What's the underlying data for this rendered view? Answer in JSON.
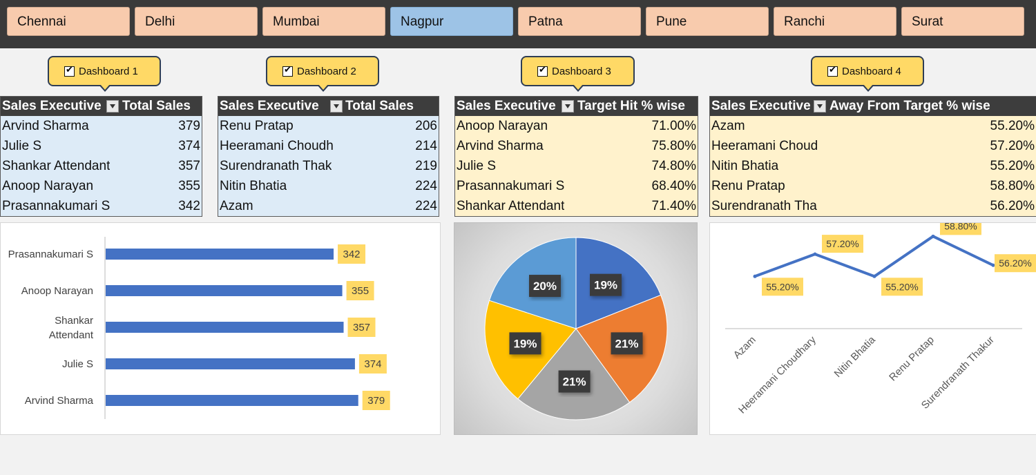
{
  "slicer": {
    "cities": [
      {
        "label": "Chennai",
        "selected": false
      },
      {
        "label": "Delhi",
        "selected": false
      },
      {
        "label": "Mumbai",
        "selected": false
      },
      {
        "label": "Nagpur",
        "selected": true
      },
      {
        "label": "Patna",
        "selected": false
      },
      {
        "label": "Pune",
        "selected": false
      },
      {
        "label": "Ranchi",
        "selected": false
      },
      {
        "label": "Surat",
        "selected": false
      }
    ],
    "colors": {
      "unselected": "#f8cbad",
      "selected": "#9dc3e6"
    }
  },
  "callouts": [
    {
      "label": "Dashboard 1",
      "checked": true
    },
    {
      "label": "Dashboard 2",
      "checked": true
    },
    {
      "label": "Dashboard 3",
      "checked": true
    },
    {
      "label": "Dashboard 4",
      "checked": true
    }
  ],
  "tables": [
    {
      "col1": "Sales Executive",
      "col2": "Total Sales",
      "rows": [
        {
          "name": "Arvind Sharma",
          "value": "379"
        },
        {
          "name": "Julie S",
          "value": "374"
        },
        {
          "name": "Shankar Attendant",
          "value": "357"
        },
        {
          "name": "Anoop Narayan",
          "value": "355"
        },
        {
          "name": "Prasannakumari S",
          "value": "342"
        }
      ]
    },
    {
      "col1": "Sales Executive",
      "col2": "Total Sales",
      "rows": [
        {
          "name": "Renu Pratap",
          "value": "206"
        },
        {
          "name": "Heeramani Choudh",
          "value": "214"
        },
        {
          "name": "Surendranath Thak",
          "value": "219"
        },
        {
          "name": "Nitin Bhatia",
          "value": "224"
        },
        {
          "name": "Azam",
          "value": "224"
        }
      ]
    },
    {
      "col1": "Sales Executive",
      "col2": "Target Hit % wise",
      "rows": [
        {
          "name": "Anoop Narayan",
          "value": "71.00%"
        },
        {
          "name": "Arvind Sharma",
          "value": "75.80%"
        },
        {
          "name": "Julie S",
          "value": "74.80%"
        },
        {
          "name": "Prasannakumari S",
          "value": "68.40%"
        },
        {
          "name": "Shankar Attendant",
          "value": "71.40%"
        }
      ]
    },
    {
      "col1": "Sales Executive",
      "col2": "Away From Target % wise",
      "rows": [
        {
          "name": "Azam",
          "value": "55.20%"
        },
        {
          "name": "Heeramani Choud",
          "value": "57.20%"
        },
        {
          "name": "Nitin Bhatia",
          "value": "55.20%"
        },
        {
          "name": "Renu Pratap",
          "value": "58.80%"
        },
        {
          "name": "Surendranath Tha",
          "value": "56.20%"
        }
      ]
    }
  ],
  "chart_data": [
    {
      "type": "bar",
      "orientation": "horizontal",
      "categories": [
        "Prasannakumari S",
        "Anoop Narayan",
        "Shankar Attendant",
        "Julie S",
        "Arvind Sharma"
      ],
      "values": [
        342,
        355,
        357,
        374,
        379
      ],
      "data_labels": [
        "342",
        "355",
        "357",
        "374",
        "379"
      ],
      "bar_color": "#4472c4",
      "label_bg": "#ffd966",
      "xlim": [
        0,
        400
      ]
    },
    {
      "type": "pie",
      "labels": [
        "19%",
        "21%",
        "21%",
        "19%",
        "20%"
      ],
      "values": [
        19,
        21,
        21,
        19,
        20
      ],
      "colors": [
        "#4472c4",
        "#ed7d31",
        "#a5a5a5",
        "#ffc000",
        "#5b9bd5"
      ]
    },
    {
      "type": "line",
      "categories": [
        "Azam",
        "Heeramani Choudhary",
        "Nitin Bhatia",
        "Renu Pratap",
        "Surendranath Thakur"
      ],
      "values": [
        55.2,
        57.2,
        55.2,
        58.8,
        56.2
      ],
      "data_labels": [
        "55.20%",
        "57.20%",
        "55.20%",
        "58.80%",
        "56.20%"
      ],
      "line_color": "#4472c4",
      "label_bg": "#ffd966",
      "ylim": [
        50.5,
        60
      ]
    }
  ]
}
